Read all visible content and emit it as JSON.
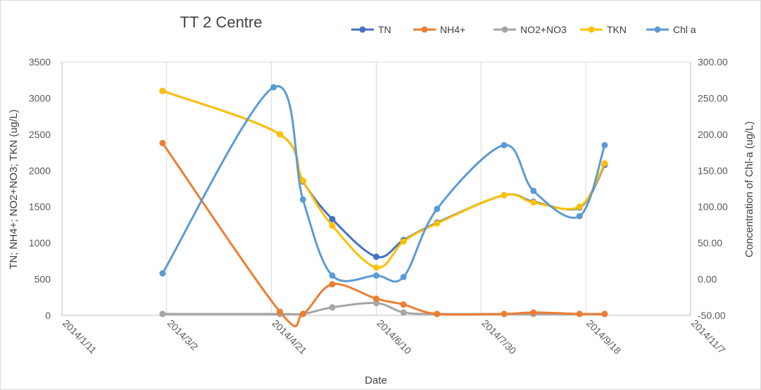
{
  "chart_data": {
    "type": "line",
    "title": "TT 2 Centre",
    "xlabel": "Date",
    "ylabel": "TN; NH4+; NO2+NO3; TKN (ug/L)",
    "y2label": "Concentration of Chl-a (ug/L)",
    "x_ticks": [
      "2014/1/11",
      "2014/3/2",
      "2014/4/21",
      "2014/6/10",
      "2014/7/30",
      "2014/9/18",
      "2014/11/7"
    ],
    "xlim": [
      "2014/1/11",
      "2014/11/7"
    ],
    "ylim": [
      0,
      3500
    ],
    "y_ticks": [
      "0",
      "500",
      "1000",
      "1500",
      "2000",
      "2500",
      "3000",
      "3500"
    ],
    "y2lim": [
      -50,
      300
    ],
    "y2_ticks": [
      "-50.00",
      "0.00",
      "50.00",
      "100.00",
      "150.00",
      "200.00",
      "250.00",
      "300.00"
    ],
    "grid": "vertical",
    "legend_position": "top",
    "series": [
      {
        "name": "TN",
        "axis": "left",
        "color": "#4472c4",
        "points": [
          [
            "2014/2/28",
            3100
          ],
          [
            "2014/4/25",
            2500
          ],
          [
            "2014/5/6",
            1850
          ],
          [
            "2014/5/20",
            1330
          ],
          [
            "2014/6/10",
            810
          ],
          [
            "2014/6/23",
            1040
          ],
          [
            "2014/7/9",
            1280
          ],
          [
            "2014/8/10",
            1660
          ],
          [
            "2014/8/24",
            1570
          ],
          [
            "2014/9/15",
            1490
          ],
          [
            "2014/9/27",
            2080
          ]
        ]
      },
      {
        "name": "NH4+",
        "axis": "left",
        "color": "#ed7d31",
        "points": [
          [
            "2014/2/28",
            2380
          ],
          [
            "2014/4/25",
            50
          ],
          [
            "2014/5/6",
            20
          ],
          [
            "2014/5/20",
            430
          ],
          [
            "2014/6/10",
            230
          ],
          [
            "2014/6/23",
            150
          ],
          [
            "2014/7/9",
            20
          ],
          [
            "2014/8/10",
            20
          ],
          [
            "2014/8/24",
            40
          ],
          [
            "2014/9/15",
            20
          ],
          [
            "2014/9/27",
            20
          ]
        ]
      },
      {
        "name": "NO2+NO3",
        "axis": "left",
        "color": "#a5a5a5",
        "points": [
          [
            "2014/2/28",
            20
          ],
          [
            "2014/4/25",
            20
          ],
          [
            "2014/5/6",
            20
          ],
          [
            "2014/5/20",
            110
          ],
          [
            "2014/6/10",
            170
          ],
          [
            "2014/6/23",
            40
          ],
          [
            "2014/7/9",
            20
          ],
          [
            "2014/8/10",
            20
          ],
          [
            "2014/8/24",
            20
          ],
          [
            "2014/9/15",
            20
          ],
          [
            "2014/9/27",
            20
          ]
        ]
      },
      {
        "name": "TKN",
        "axis": "left",
        "color": "#ffc000",
        "points": [
          [
            "2014/2/28",
            3100
          ],
          [
            "2014/4/25",
            2500
          ],
          [
            "2014/5/6",
            1860
          ],
          [
            "2014/5/20",
            1240
          ],
          [
            "2014/6/10",
            660
          ],
          [
            "2014/6/23",
            1020
          ],
          [
            "2014/7/9",
            1270
          ],
          [
            "2014/8/10",
            1660
          ],
          [
            "2014/8/24",
            1560
          ],
          [
            "2014/9/15",
            1500
          ],
          [
            "2014/9/27",
            2100
          ]
        ]
      },
      {
        "name": "Chl a",
        "axis": "right",
        "color": "#5b9bd5",
        "points": [
          [
            "2014/2/28",
            8
          ],
          [
            "2014/4/22",
            265
          ],
          [
            "2014/5/6",
            110
          ],
          [
            "2014/5/20",
            5
          ],
          [
            "2014/6/10",
            5
          ],
          [
            "2014/6/23",
            3
          ],
          [
            "2014/7/9",
            97
          ],
          [
            "2014/8/10",
            185
          ],
          [
            "2014/8/24",
            122
          ],
          [
            "2014/9/15",
            87
          ],
          [
            "2014/9/27",
            185
          ]
        ]
      }
    ]
  }
}
